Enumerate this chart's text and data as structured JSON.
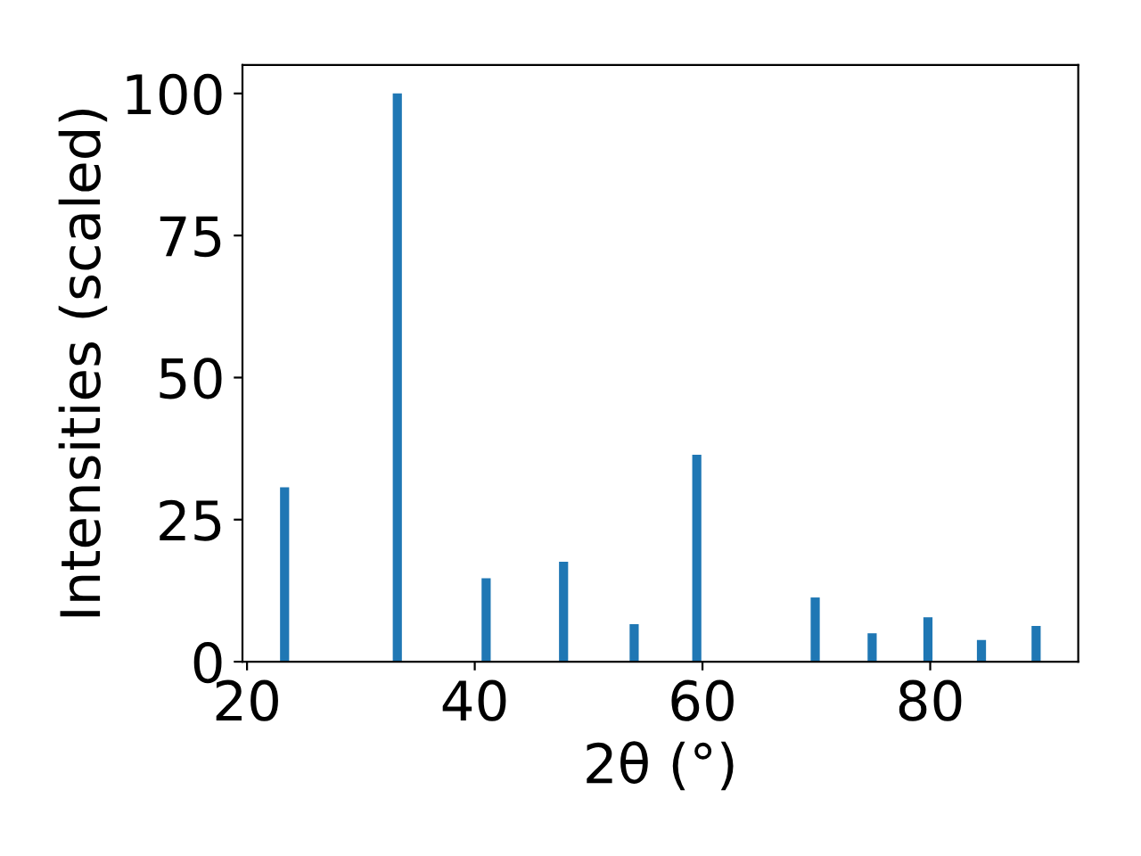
{
  "chart_data": {
    "type": "bar",
    "xlabel": "2θ (°)",
    "ylabel": "Intensities (scaled)",
    "x": [
      23.3,
      33.2,
      41.0,
      47.8,
      54.0,
      59.5,
      69.9,
      74.9,
      79.8,
      84.5,
      89.3
    ],
    "values": [
      30.7,
      100,
      14.7,
      17.6,
      6.6,
      36.4,
      11.3,
      5.0,
      7.8,
      3.8,
      6.3
    ],
    "color": "#1f77b4",
    "xlim": [
      19.6,
      93.0
    ],
    "xticks": [
      20,
      40,
      60,
      80
    ],
    "ylim": [
      0,
      105
    ],
    "yticks": [
      0,
      25,
      50,
      75,
      100
    ],
    "grid": false
  }
}
